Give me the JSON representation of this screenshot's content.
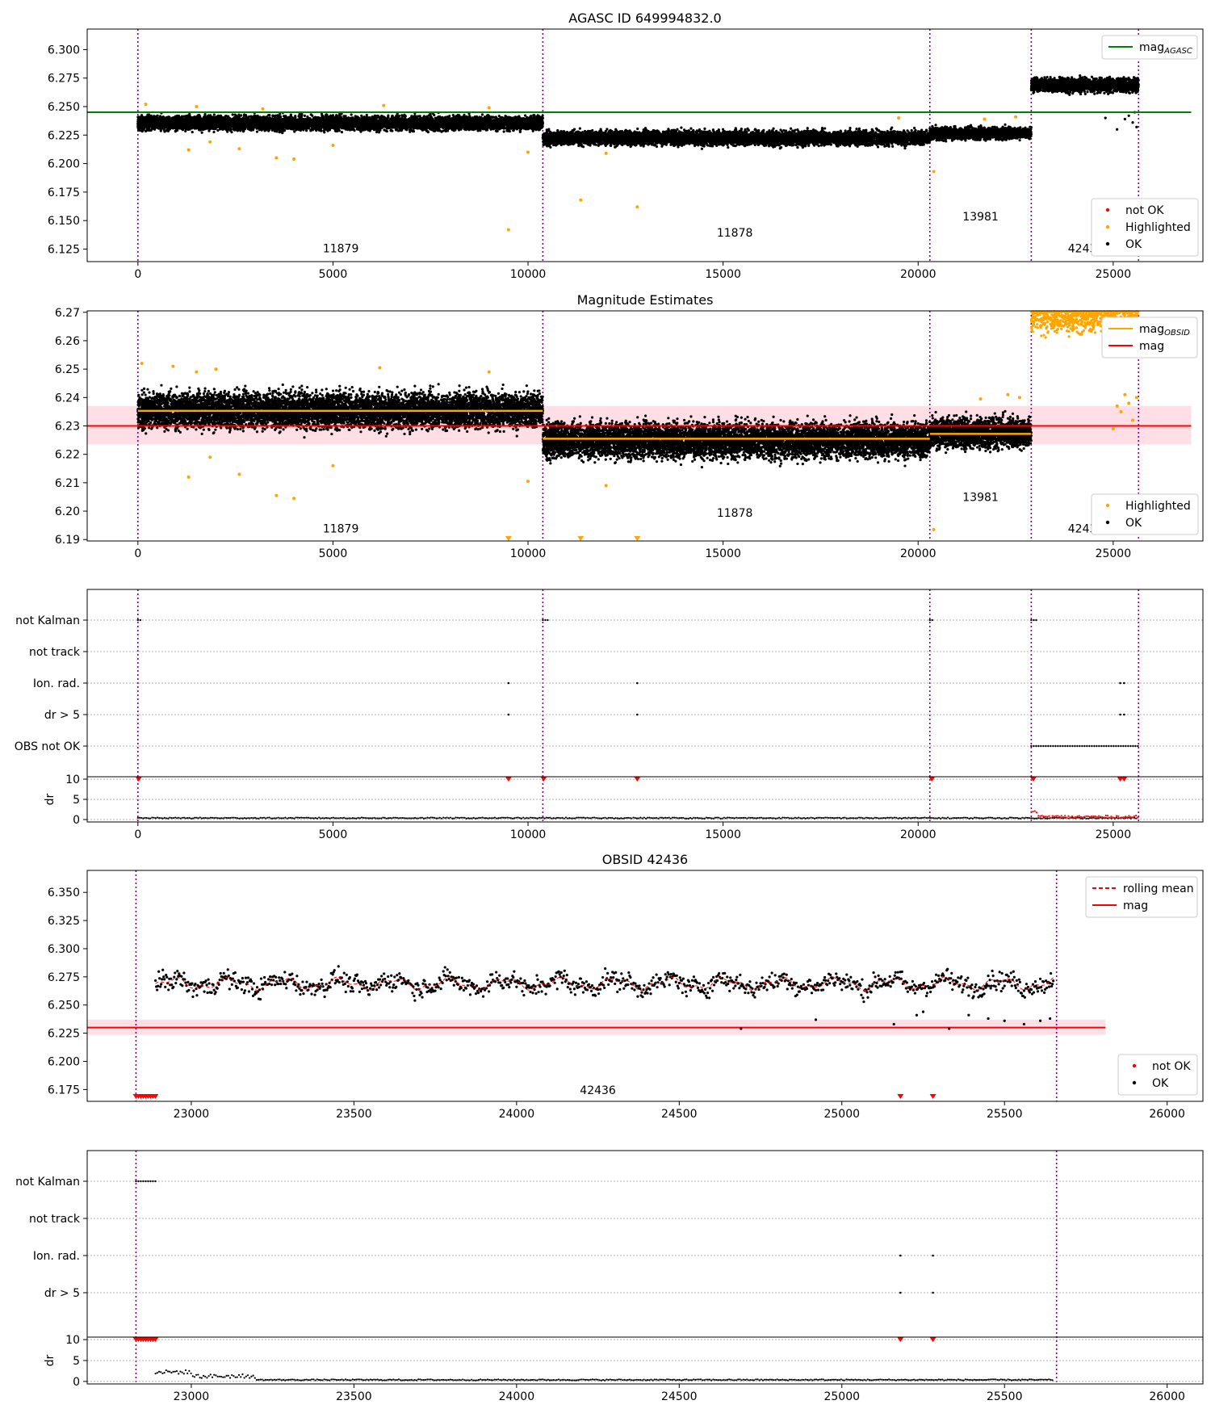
{
  "colors": {
    "ok": "#000000",
    "not_ok": "#ff0000",
    "highlighted": "#ffa500",
    "mag_agasc_line": "#008000",
    "mag_line": "#ff0000",
    "mag_band": "#ffc0cb",
    "obsid_boundary": "#800080",
    "rolling_mean": "#ff0000",
    "grid": "#b0b0b0"
  },
  "chart_data": [
    {
      "type": "scatter",
      "title": "AGASC ID 649994832.0",
      "xlim": [
        -1300,
        27300
      ],
      "ylim": [
        6.114,
        6.318
      ],
      "xticks": [
        0,
        5000,
        10000,
        15000,
        20000,
        25000
      ],
      "yticks": [
        6.125,
        6.15,
        6.175,
        6.2,
        6.225,
        6.25,
        6.275,
        6.3
      ],
      "ytick_labels": [
        "6.125",
        "6.150",
        "6.175",
        "6.200",
        "6.225",
        "6.250",
        "6.275",
        "6.300"
      ],
      "obsid_boundaries": [
        0,
        10380,
        20300,
        22900,
        25650
      ],
      "obsid_labels": [
        {
          "label": "11879",
          "x": 5200,
          "y": 6.122
        },
        {
          "label": "11878",
          "x": 15300,
          "y": 6.136
        },
        {
          "label": "13981",
          "x": 21600,
          "y": 6.15
        },
        {
          "label": "42436",
          "x": 24300,
          "y": 6.122
        }
      ],
      "segments": [
        {
          "x0": 0,
          "x1": 10380,
          "mean": 6.2355,
          "spread": 0.006
        },
        {
          "x0": 10380,
          "x1": 20300,
          "mean": 6.2225,
          "spread": 0.006
        },
        {
          "x0": 20300,
          "x1": 22900,
          "mean": 6.2265,
          "spread": 0.005
        },
        {
          "x0": 22900,
          "x1": 25650,
          "mean": 6.269,
          "spread": 0.006
        }
      ],
      "mag_agasc": {
        "value": 6.245,
        "x0": -1300,
        "x1": 27000
      },
      "highlighted_points": [
        {
          "x": 1300,
          "y": 6.212
        },
        {
          "x": 1850,
          "y": 6.219
        },
        {
          "x": 2600,
          "y": 6.213
        },
        {
          "x": 3550,
          "y": 6.205
        },
        {
          "x": 4000,
          "y": 6.204
        },
        {
          "x": 5000,
          "y": 6.216
        },
        {
          "x": 9500,
          "y": 6.142
        },
        {
          "x": 10000,
          "y": 6.21
        },
        {
          "x": 11350,
          "y": 6.168
        },
        {
          "x": 12000,
          "y": 6.209
        },
        {
          "x": 12800,
          "y": 6.162
        },
        {
          "x": 20400,
          "y": 6.193
        },
        {
          "x": 200,
          "y": 6.252
        },
        {
          "x": 1500,
          "y": 6.25
        },
        {
          "x": 3200,
          "y": 6.248
        },
        {
          "x": 6300,
          "y": 6.251
        },
        {
          "x": 9000,
          "y": 6.249
        },
        {
          "x": 19500,
          "y": 6.24
        },
        {
          "x": 21700,
          "y": 6.239
        },
        {
          "x": 22500,
          "y": 6.241
        }
      ],
      "legend_lines": [
        {
          "label": "mag",
          "subscript": "AGASC",
          "color": "#008000"
        }
      ],
      "legend_points": [
        {
          "label": "not OK",
          "color": "#ff0000"
        },
        {
          "label": "Highlighted",
          "color": "#ffa500"
        },
        {
          "label": "OK",
          "color": "#000000"
        }
      ]
    },
    {
      "type": "scatter",
      "title": "Magnitude Estimates",
      "xlim": [
        -1300,
        27300
      ],
      "ylim": [
        6.1895,
        6.2705
      ],
      "xticks": [
        0,
        5000,
        10000,
        15000,
        20000,
        25000
      ],
      "yticks": [
        6.19,
        6.2,
        6.21,
        6.22,
        6.23,
        6.24,
        6.25,
        6.26,
        6.27
      ],
      "ytick_labels": [
        "6.19",
        "6.20",
        "6.21",
        "6.22",
        "6.23",
        "6.24",
        "6.25",
        "6.26",
        "6.27"
      ],
      "obsid_boundaries": [
        0,
        10380,
        20300,
        22900,
        25650
      ],
      "obsid_labels": [
        {
          "label": "11879",
          "x": 5200,
          "y": 6.1925
        },
        {
          "label": "11878",
          "x": 15300,
          "y": 6.198
        },
        {
          "label": "13981",
          "x": 21600,
          "y": 6.2035
        },
        {
          "label": "42436",
          "x": 24300,
          "y": 6.1925
        }
      ],
      "segments": [
        {
          "x0": 0,
          "x1": 10380,
          "mean": 6.2355,
          "spread": 0.006
        },
        {
          "x0": 10380,
          "x1": 20300,
          "mean": 6.225,
          "spread": 0.006
        },
        {
          "x0": 20300,
          "x1": 22900,
          "mean": 6.2275,
          "spread": 0.005
        }
      ],
      "mag_obsid": [
        {
          "x0": 0,
          "x1": 10380,
          "value": 6.2353
        },
        {
          "x0": 10380,
          "x1": 20300,
          "value": 6.2255
        },
        {
          "x0": 20300,
          "x1": 22900,
          "value": 6.2272
        }
      ],
      "mag": {
        "value": 6.23,
        "band": [
          6.2235,
          6.237
        ],
        "x0": -1300,
        "x1": 27000
      },
      "highlighted_points": [
        {
          "x": 1300,
          "y": 6.212
        },
        {
          "x": 1850,
          "y": 6.219
        },
        {
          "x": 2600,
          "y": 6.213
        },
        {
          "x": 3550,
          "y": 6.2055
        },
        {
          "x": 4000,
          "y": 6.2045
        },
        {
          "x": 5000,
          "y": 6.216
        },
        {
          "x": 10000,
          "y": 6.2105
        },
        {
          "x": 12000,
          "y": 6.209
        },
        {
          "x": 20400,
          "y": 6.1935
        },
        {
          "x": 100,
          "y": 6.252
        },
        {
          "x": 900,
          "y": 6.251
        },
        {
          "x": 1500,
          "y": 6.249
        },
        {
          "x": 2000,
          "y": 6.25
        },
        {
          "x": 6200,
          "y": 6.2505
        },
        {
          "x": 9000,
          "y": 6.249
        },
        {
          "x": 21600,
          "y": 6.2395
        },
        {
          "x": 22300,
          "y": 6.241
        },
        {
          "x": 22600,
          "y": 6.24
        }
      ],
      "highlighted_below_range": [
        9500,
        11350,
        12800
      ],
      "high_segment": {
        "x0": 22900,
        "x1": 25650,
        "mean": 6.269,
        "spread": 0.006
      },
      "legend_lines": [
        {
          "label": "mag",
          "subscript": "OBSID",
          "color": "#ffa500"
        },
        {
          "label": "mag",
          "subscript": "",
          "color": "#ff0000"
        }
      ],
      "legend_points": [
        {
          "label": "Highlighted",
          "color": "#ffa500"
        },
        {
          "label": "OK",
          "color": "#000000"
        }
      ]
    },
    {
      "type": "scatter",
      "title": "",
      "xlim": [
        -1300,
        27300
      ],
      "xticks": [
        0,
        5000,
        10000,
        15000,
        20000,
        25000
      ],
      "flag_labels": [
        "not Kalman",
        "not track",
        "Ion. rad.",
        "dr > 5",
        "OBS not OK"
      ],
      "obsid_boundaries": [
        0,
        10380,
        20300,
        22900,
        25650
      ],
      "flags": {
        "not Kalman": [
          [
            0,
            80
          ],
          [
            10380,
            10520
          ],
          [
            20300,
            20420
          ],
          [
            22900,
            23030
          ]
        ],
        "not track": [],
        "Ion. rad.": [
          [
            9500,
            9500
          ],
          [
            12800,
            12800
          ],
          [
            25180,
            25180
          ],
          [
            25280,
            25280
          ]
        ],
        "dr > 5": [
          [
            9500,
            9500
          ],
          [
            12800,
            12800
          ],
          [
            25180,
            25180
          ],
          [
            25280,
            25280
          ]
        ],
        "OBS not OK": [
          [
            22900,
            25650
          ]
        ]
      },
      "dr_ylabel": "dr",
      "dr_yticks": [
        0,
        5,
        10
      ],
      "dr_ylim": [
        -0.6,
        10.6
      ],
      "dr_red_markers": [
        20,
        10400,
        9500,
        12800,
        20350,
        22950,
        25180,
        25280
      ]
    },
    {
      "type": "scatter",
      "title": "OBSID 42436",
      "xlim": [
        22680,
        26110
      ],
      "ylim": [
        6.1645,
        6.3695
      ],
      "xticks": [
        23000,
        23500,
        24000,
        24500,
        25000,
        25500,
        26000
      ],
      "yticks": [
        6.175,
        6.2,
        6.225,
        6.25,
        6.275,
        6.3,
        6.325,
        6.35
      ],
      "ytick_labels": [
        "6.175",
        "6.200",
        "6.225",
        "6.250",
        "6.275",
        "6.300",
        "6.325",
        "6.350"
      ],
      "obsid_boundaries": [
        22830,
        25660
      ],
      "obsid_labels": [
        {
          "label": "42436",
          "x": 24250,
          "y": 6.171
        }
      ],
      "mag": {
        "value": 6.23,
        "band": [
          6.2235,
          6.237
        ],
        "x0": 22680,
        "x1": 25810
      },
      "data_start": 22890,
      "mean": 6.269,
      "outliers": [
        {
          "x": 24690,
          "y": 6.229
        },
        {
          "x": 24920,
          "y": 6.237
        },
        {
          "x": 25160,
          "y": 6.233
        },
        {
          "x": 25230,
          "y": 6.241
        },
        {
          "x": 25250,
          "y": 6.244
        },
        {
          "x": 25330,
          "y": 6.229
        },
        {
          "x": 25390,
          "y": 6.241
        },
        {
          "x": 25450,
          "y": 6.238
        },
        {
          "x": 25500,
          "y": 6.236
        },
        {
          "x": 25560,
          "y": 6.233
        },
        {
          "x": 25610,
          "y": 6.236
        },
        {
          "x": 25640,
          "y": 6.238
        }
      ],
      "not_ok_below_range": [
        [
          22830,
          22890
        ],
        [
          25180,
          25180
        ],
        [
          25280,
          25280
        ]
      ],
      "legend_lines": [
        {
          "label": "rolling mean",
          "color": "#ff0000",
          "dashed": true
        },
        {
          "label": "mag",
          "color": "#ff0000",
          "dashed": false
        }
      ],
      "legend_points": [
        {
          "label": "not OK",
          "color": "#ff0000"
        },
        {
          "label": "OK",
          "color": "#000000"
        }
      ]
    },
    {
      "type": "scatter",
      "title": "",
      "xlim": [
        22680,
        26110
      ],
      "xticks": [
        23000,
        23500,
        24000,
        24500,
        25000,
        25500,
        26000
      ],
      "flag_labels": [
        "not Kalman",
        "not track",
        "Ion. rad.",
        "dr > 5"
      ],
      "obsid_boundaries": [
        22830,
        25660
      ],
      "flags": {
        "not Kalman": [
          [
            22830,
            22895
          ]
        ],
        "not track": [],
        "Ion. rad.": [
          [
            25180,
            25180
          ],
          [
            25280,
            25280
          ]
        ],
        "dr > 5": [
          [
            25180,
            25180
          ],
          [
            25280,
            25280
          ]
        ]
      },
      "dr_ylabel": "dr",
      "dr_yticks": [
        0,
        5,
        10
      ],
      "dr_ylim": [
        -0.6,
        10.6
      ],
      "dr_red_range": [
        22830,
        22895
      ],
      "dr_red_markers": [
        25180,
        25280
      ]
    }
  ]
}
